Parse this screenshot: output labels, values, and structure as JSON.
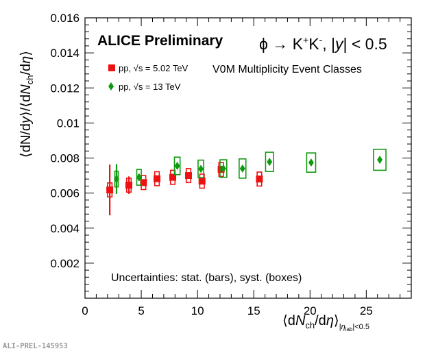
{
  "chart_data": {
    "type": "scatter",
    "title": "ALICE Preliminary",
    "reaction": "ϕ → K⁺K⁻, |y| < 0.5",
    "event_classes": "V0M Multiplicity Event Classes",
    "annotation": "Uncertainties: stat. (bars), syst. (boxes)",
    "watermark": "ALI-PREL-145953",
    "ylabel": "⟨dN/dy⟩/⟨dNch/dη⟩",
    "xlabel": "⟨dNch/dη⟩|ηlab|<0.5",
    "xlim": [
      0,
      29
    ],
    "ylim": [
      0,
      0.016
    ],
    "x_ticks": [
      0,
      5,
      10,
      15,
      20,
      25
    ],
    "y_ticks": [
      0.002,
      0.004,
      0.006,
      0.008,
      0.01,
      0.012,
      0.014,
      0.016
    ],
    "y_tick_labels": [
      "0.002",
      "0.004",
      "0.006",
      "0.008",
      "0.01",
      "0.012",
      "0.014",
      "0.016"
    ],
    "series": [
      {
        "name": "pp, √s = 5.02 TeV",
        "color": "#ee1111",
        "marker": "square",
        "points": [
          {
            "x": 2.2,
            "y": 0.00618,
            "stat": 0.00145,
            "syst": 0.0004,
            "sx": 0.2
          },
          {
            "x": 3.9,
            "y": 0.00645,
            "stat": 0.0005,
            "syst": 0.0004,
            "sx": 0.2
          },
          {
            "x": 5.2,
            "y": 0.0066,
            "stat": 0.00015,
            "syst": 0.0004,
            "sx": 0.2
          },
          {
            "x": 6.4,
            "y": 0.00682,
            "stat": 0.0001,
            "syst": 0.0004,
            "sx": 0.2
          },
          {
            "x": 7.8,
            "y": 0.0069,
            "stat": 0.0001,
            "syst": 0.0004,
            "sx": 0.2
          },
          {
            "x": 9.2,
            "y": 0.007,
            "stat": 0.0001,
            "syst": 0.0004,
            "sx": 0.2
          },
          {
            "x": 10.4,
            "y": 0.00668,
            "stat": 0.0001,
            "syst": 0.0004,
            "sx": 0.2
          },
          {
            "x": 12.1,
            "y": 0.00735,
            "stat": 0.0001,
            "syst": 0.0004,
            "sx": 0.2
          },
          {
            "x": 15.5,
            "y": 0.0068,
            "stat": 0.0001,
            "syst": 0.0004,
            "sx": 0.2
          }
        ]
      },
      {
        "name": "pp, √s = 13 TeV",
        "color": "#119911",
        "marker": "diamond",
        "points": [
          {
            "x": 2.8,
            "y": 0.0068,
            "stat": 0.00085,
            "syst": 0.00045,
            "sx": 0.15
          },
          {
            "x": 4.8,
            "y": 0.0069,
            "stat": 0.0002,
            "syst": 0.00045,
            "sx": 0.2
          },
          {
            "x": 8.2,
            "y": 0.00755,
            "stat": 0.0001,
            "syst": 0.0005,
            "sx": 0.25
          },
          {
            "x": 10.3,
            "y": 0.00738,
            "stat": 0.0001,
            "syst": 0.0005,
            "sx": 0.25
          },
          {
            "x": 12.3,
            "y": 0.0074,
            "stat": 0.0001,
            "syst": 0.0005,
            "sx": 0.3
          },
          {
            "x": 14,
            "y": 0.0074,
            "stat": 0.0001,
            "syst": 0.00055,
            "sx": 0.3
          },
          {
            "x": 16.4,
            "y": 0.00778,
            "stat": 0.0001,
            "syst": 0.00055,
            "sx": 0.35
          },
          {
            "x": 20.1,
            "y": 0.00774,
            "stat": 0.0001,
            "syst": 0.00055,
            "sx": 0.4
          },
          {
            "x": 26.2,
            "y": 0.0079,
            "stat": 0.0001,
            "syst": 0.0006,
            "sx": 0.55
          }
        ]
      }
    ]
  }
}
